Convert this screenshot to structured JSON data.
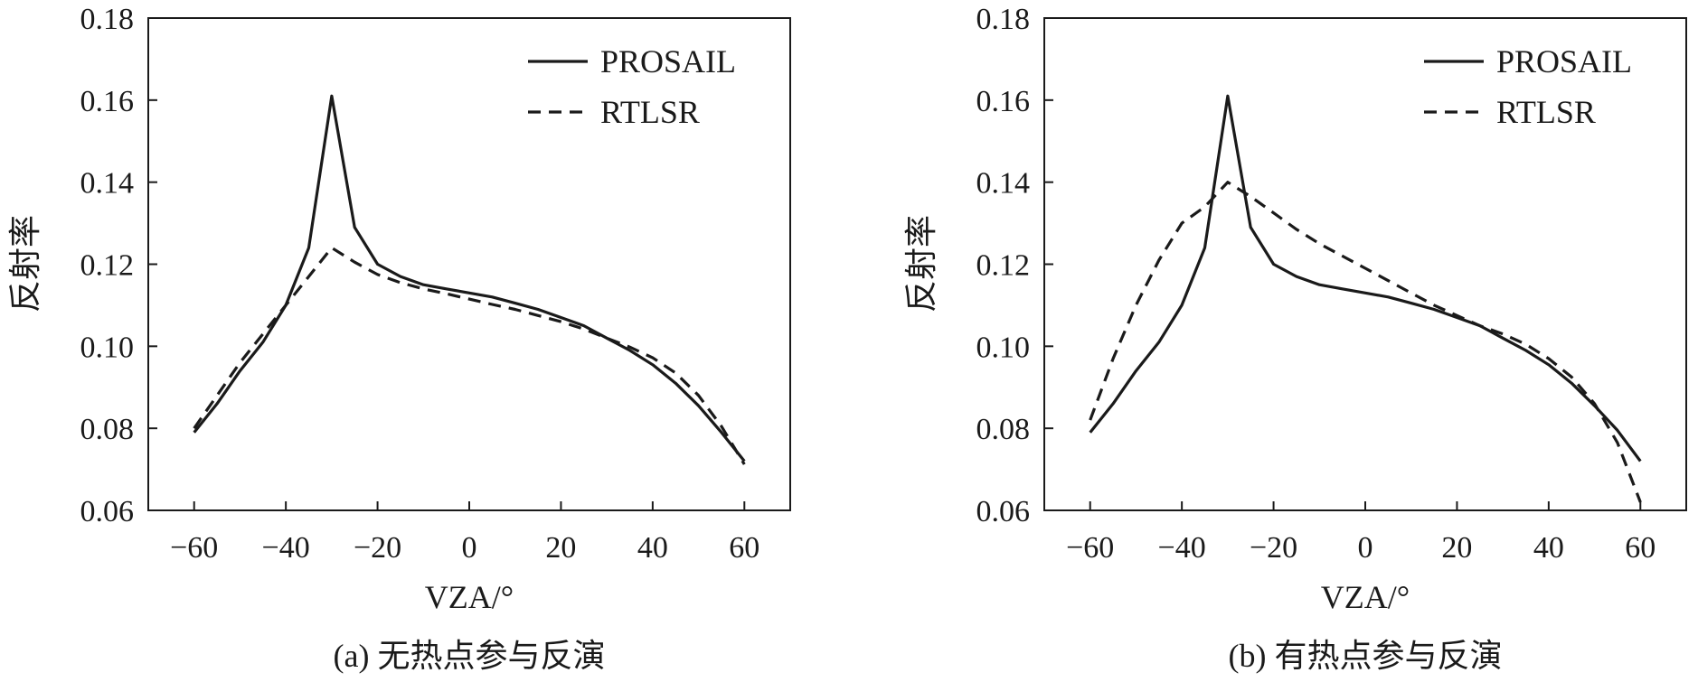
{
  "figure": {
    "panels": [
      {
        "caption": "(a) 无热点参与反演"
      },
      {
        "caption": "(b) 有热点参与反演"
      }
    ]
  },
  "chart_data": [
    {
      "type": "line",
      "title": "",
      "caption": "(a) 无热点参与反演",
      "xlabel": "VZA/°",
      "ylabel": "反射率",
      "xlim": [
        -70,
        70
      ],
      "ylim": [
        0.06,
        0.18
      ],
      "xticks": [
        -60,
        -40,
        -20,
        0,
        20,
        40,
        60
      ],
      "xtick_labels": [
        "−60",
        "−40",
        "−20",
        "0",
        "20",
        "40",
        "60"
      ],
      "yticks": [
        0.06,
        0.08,
        0.1,
        0.12,
        0.14,
        0.16,
        0.18
      ],
      "ytick_labels": [
        "0.06",
        "0.08",
        "0.10",
        "0.12",
        "0.14",
        "0.16",
        "0.18"
      ],
      "grid": false,
      "legend_position": "top-right",
      "series": [
        {
          "name": "PROSAIL",
          "style": "solid",
          "color": "#1a1a1a",
          "x": [
            -60,
            -55,
            -50,
            -45,
            -40,
            -35,
            -30,
            -25,
            -20,
            -15,
            -10,
            -5,
            0,
            5,
            10,
            15,
            20,
            25,
            30,
            35,
            40,
            45,
            50,
            55,
            60
          ],
          "y": [
            0.079,
            0.086,
            0.094,
            0.101,
            0.11,
            0.124,
            0.161,
            0.129,
            0.12,
            0.117,
            0.115,
            0.114,
            0.113,
            0.112,
            0.1105,
            0.109,
            0.107,
            0.105,
            0.102,
            0.099,
            0.0955,
            0.091,
            0.0855,
            0.079,
            0.072
          ]
        },
        {
          "name": "RTLSR",
          "style": "dashed",
          "color": "#1a1a1a",
          "x": [
            -60,
            -55,
            -50,
            -45,
            -40,
            -35,
            -30,
            -25,
            -20,
            -15,
            -10,
            -5,
            0,
            5,
            10,
            15,
            20,
            25,
            30,
            35,
            40,
            45,
            50,
            55,
            60
          ],
          "y": [
            0.08,
            0.088,
            0.096,
            0.103,
            0.11,
            0.117,
            0.124,
            0.1205,
            0.1175,
            0.1155,
            0.114,
            0.1128,
            0.1115,
            0.1102,
            0.109,
            0.1075,
            0.106,
            0.1042,
            0.102,
            0.0998,
            0.0972,
            0.0935,
            0.088,
            0.0805,
            0.0712
          ]
        }
      ]
    },
    {
      "type": "line",
      "title": "",
      "caption": "(b) 有热点参与反演",
      "xlabel": "VZA/°",
      "ylabel": "反射率",
      "xlim": [
        -70,
        70
      ],
      "ylim": [
        0.06,
        0.18
      ],
      "xticks": [
        -60,
        -40,
        -20,
        0,
        20,
        40,
        60
      ],
      "xtick_labels": [
        "−60",
        "−40",
        "−20",
        "0",
        "20",
        "40",
        "60"
      ],
      "yticks": [
        0.06,
        0.08,
        0.1,
        0.12,
        0.14,
        0.16,
        0.18
      ],
      "ytick_labels": [
        "0.06",
        "0.08",
        "0.10",
        "0.12",
        "0.14",
        "0.16",
        "0.18"
      ],
      "grid": false,
      "legend_position": "top-right",
      "series": [
        {
          "name": "PROSAIL",
          "style": "solid",
          "color": "#1a1a1a",
          "x": [
            -60,
            -55,
            -50,
            -45,
            -40,
            -35,
            -30,
            -25,
            -20,
            -15,
            -10,
            -5,
            0,
            5,
            10,
            15,
            20,
            25,
            30,
            35,
            40,
            45,
            50,
            55,
            60
          ],
          "y": [
            0.079,
            0.086,
            0.094,
            0.101,
            0.11,
            0.124,
            0.161,
            0.129,
            0.12,
            0.117,
            0.115,
            0.114,
            0.113,
            0.112,
            0.1105,
            0.109,
            0.107,
            0.105,
            0.102,
            0.099,
            0.0955,
            0.091,
            0.0855,
            0.0795,
            0.072
          ]
        },
        {
          "name": "RTLSR",
          "style": "dashed",
          "color": "#1a1a1a",
          "x": [
            -60,
            -55,
            -50,
            -45,
            -40,
            -35,
            -30,
            -25,
            -20,
            -15,
            -10,
            -5,
            0,
            5,
            10,
            15,
            20,
            25,
            30,
            35,
            40,
            45,
            50,
            55,
            60
          ],
          "y": [
            0.082,
            0.097,
            0.11,
            0.121,
            0.13,
            0.134,
            0.14,
            0.1365,
            0.1325,
            0.1285,
            0.125,
            0.122,
            0.119,
            0.116,
            0.113,
            0.11,
            0.1075,
            0.105,
            0.103,
            0.1005,
            0.097,
            0.0925,
            0.086,
            0.0765,
            0.062
          ]
        }
      ]
    }
  ]
}
